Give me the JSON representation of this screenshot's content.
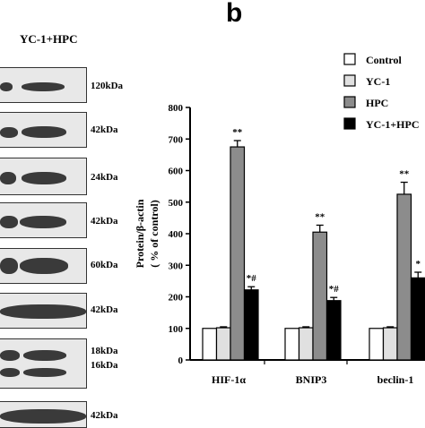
{
  "header": {
    "panel_letter": "b",
    "blot_label": "YC-1+HPC"
  },
  "blot": {
    "markers": [
      "120kDa",
      "42kDa",
      "24kDa",
      "42kDa",
      "60kDa",
      "42kDa",
      "18kDa",
      "16kDa",
      "42kDa"
    ]
  },
  "chart_data": {
    "type": "bar",
    "categories": [
      "HIF-1α",
      "BNIP3",
      "beclin-1"
    ],
    "series": [
      {
        "name": "Control",
        "values": [
          100,
          100,
          100
        ],
        "errors": [
          0,
          0,
          0
        ],
        "color": "#ffffff",
        "annotation": [
          "",
          "",
          ""
        ]
      },
      {
        "name": "YC-1",
        "values": [
          102,
          102,
          102
        ],
        "errors": [
          3,
          3,
          3
        ],
        "color": "#e0e0e0",
        "annotation": [
          "",
          "",
          ""
        ]
      },
      {
        "name": "HPC",
        "values": [
          675,
          405,
          525
        ],
        "errors": [
          20,
          22,
          38
        ],
        "color": "#8c8c8c",
        "annotation": [
          "**",
          "**",
          "**"
        ]
      },
      {
        "name": "YC-1+HPC",
        "values": [
          222,
          188,
          260
        ],
        "errors": [
          10,
          10,
          18
        ],
        "color": "#000000",
        "annotation": [
          "*#",
          "*#",
          "*"
        ]
      }
    ],
    "ylabel_line1": "Protein/β-actin",
    "ylabel_line2": "( % of control)",
    "ylim": [
      0,
      800
    ],
    "yticks": [
      0,
      100,
      200,
      300,
      400,
      500,
      600,
      700,
      800
    ],
    "legend_position": "top-right",
    "grid": false
  }
}
